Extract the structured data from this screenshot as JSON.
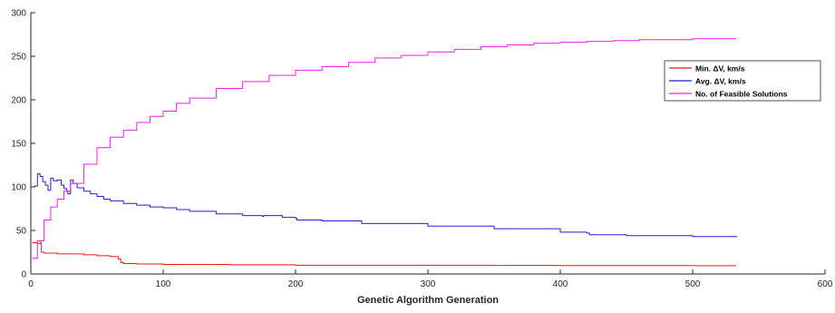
{
  "chart_data": {
    "type": "line",
    "xlabel": "Genetic Algorithm Generation",
    "ylabel": "",
    "xlim": [
      0,
      600
    ],
    "ylim": [
      0,
      300
    ],
    "xticks": [
      0,
      100,
      200,
      300,
      400,
      500,
      600
    ],
    "yticks": [
      0,
      50,
      100,
      150,
      200,
      250,
      300
    ],
    "grid": false,
    "legend_position": "top-right",
    "series": [
      {
        "name": "Min. ΔV, km/s",
        "color": "#e8191c",
        "x": [
          1,
          3,
          5,
          7,
          8,
          10,
          12,
          20,
          30,
          40,
          50,
          60,
          64,
          66,
          68,
          70,
          80,
          100,
          150,
          200,
          250,
          300,
          350,
          400,
          450,
          500,
          533
        ],
        "y": [
          36,
          36,
          35,
          36,
          25,
          24,
          24,
          23,
          23,
          22,
          21,
          20,
          20,
          17,
          13,
          12,
          11.5,
          11,
          10.5,
          10,
          10,
          10,
          9.8,
          9.7,
          9.6,
          9.5,
          9.5
        ]
      },
      {
        "name": "Avg. ΔV, km/s",
        "color": "#1f1fdb",
        "x": [
          1,
          3,
          5,
          7,
          9,
          11,
          13,
          15,
          17,
          20,
          23,
          25,
          27,
          28,
          30,
          32,
          35,
          40,
          45,
          50,
          55,
          60,
          70,
          80,
          90,
          100,
          110,
          120,
          140,
          160,
          175,
          176,
          190,
          200,
          201,
          220,
          250,
          300,
          350,
          400,
          420,
          422,
          450,
          500,
          533
        ],
        "y": [
          100,
          101,
          115,
          112,
          106,
          102,
          96,
          110,
          107,
          108,
          102,
          98,
          95,
          92,
          108,
          104,
          99,
          95,
          92,
          89,
          86,
          84,
          81,
          79,
          77,
          76,
          74,
          72,
          69,
          67,
          66,
          67,
          65,
          64,
          62,
          61,
          58,
          55,
          52,
          48,
          47,
          45,
          44,
          43,
          42
        ]
      },
      {
        "name": "No. of Feasible Solutions",
        "color": "#ee1fee",
        "x": [
          1,
          5,
          10,
          15,
          20,
          25,
          30,
          40,
          50,
          60,
          70,
          80,
          90,
          100,
          110,
          120,
          140,
          160,
          180,
          200,
          220,
          240,
          260,
          280,
          300,
          320,
          340,
          360,
          380,
          400,
          420,
          440,
          460,
          480,
          500,
          520,
          533
        ],
        "y": [
          18,
          38,
          62,
          77,
          86,
          95,
          104,
          126,
          145,
          157,
          165,
          174,
          181,
          187,
          196,
          202,
          213,
          221,
          228,
          234,
          238,
          243,
          248,
          251,
          255,
          258,
          261,
          263,
          265,
          266,
          267,
          268,
          269,
          269,
          270,
          270,
          270
        ]
      }
    ]
  }
}
